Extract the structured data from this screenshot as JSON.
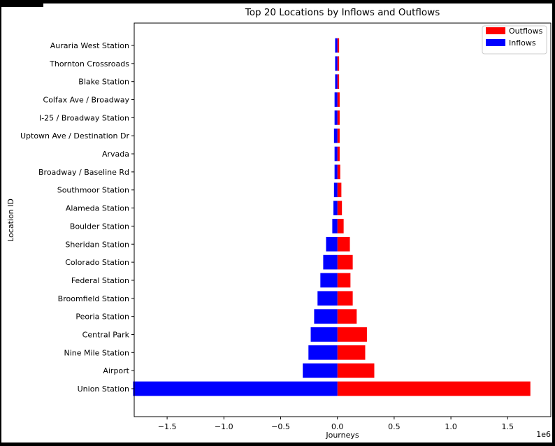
{
  "chart_data": {
    "type": "bar",
    "orientation": "horizontal",
    "title": "Top 20 Locations by Inflows and Outflows",
    "xlabel": "Journeys",
    "ylabel": "Location ID",
    "x_scale_label": "1e6",
    "xlim": [
      -1.79,
      1.88
    ],
    "xticks": [
      -1.5,
      -1.0,
      -0.5,
      0.0,
      0.5,
      1.0,
      1.5
    ],
    "xtick_labels": [
      "−1.5",
      "−1.0",
      "−0.5",
      "0.0",
      "0.5",
      "1.0",
      "1.5"
    ],
    "grid": false,
    "legend_position": "top-right",
    "categories": [
      "Union Station",
      "Airport",
      "Nine Mile Station",
      "Central Park",
      "Peoria Station",
      "Broomfield Station",
      "Federal Station",
      "Colorado Station",
      "Sheridan Station",
      "Boulder Station",
      "Alameda Station",
      "Southmoor Station",
      "Broadway / Baseline Rd",
      "Arvada",
      "Uptown Ave / Destination Dr",
      "I-25 / Broadway Station",
      "Colfax Ave / Broadway",
      "Blake Station",
      "Thornton Crossroads",
      "Auraria West Station"
    ],
    "series": [
      {
        "name": "Outflows",
        "color": "#ff0000",
        "values": [
          1700000,
          325000,
          245000,
          260000,
          170000,
          135000,
          115000,
          135000,
          110000,
          55000,
          40000,
          35000,
          25000,
          20000,
          20000,
          20000,
          20000,
          15000,
          15000,
          15000
        ]
      },
      {
        "name": "Inflows",
        "color": "#0000ff",
        "values": [
          -1800000,
          -305000,
          -255000,
          -235000,
          -205000,
          -175000,
          -150000,
          -125000,
          -100000,
          -45000,
          -35000,
          -30000,
          -25000,
          -25000,
          -30000,
          -25000,
          -25000,
          -20000,
          -20000,
          -20000
        ]
      }
    ]
  }
}
